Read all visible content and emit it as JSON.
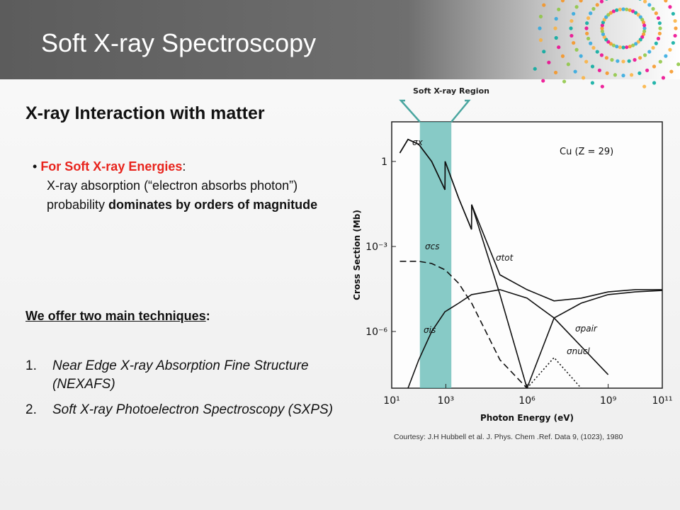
{
  "header": {
    "title": "Soft X-ray Spectroscopy"
  },
  "subtitle": "X-ray Interaction with matter",
  "bullet": {
    "lead": "For Soft X-ray Energies",
    "lead_end": ":",
    "text": "X-ray absorption (“electron absorbs photon”) probability ",
    "emphasis": "dominates by orders of magnitude"
  },
  "techniques": {
    "heading": "We offer two main techniques",
    "heading_end": ":",
    "items": [
      {
        "number": "1.",
        "text": "Near Edge X-ray Absorption Fine Structure (NEXAFS)"
      },
      {
        "number": "2.",
        "text": "Soft X-ray Photoelectron Spectroscopy (SXPS)"
      }
    ]
  },
  "caption": "Courtesy: J.H Hubbell et al.  J. Phys. Chem .Ref. Data 9, (1023), 1980",
  "chart_data": {
    "type": "line",
    "log_x": true,
    "log_y": true,
    "xlabel": "Photon Energy (eV)",
    "ylabel": "Cross Section (Mb)",
    "annotation": "Cu (Z = 29)",
    "highlight": {
      "label": "Soft X-ray Region",
      "range": [
        110,
        1600
      ]
    },
    "xlim": [
      10,
      100000000000
    ],
    "ylim": [
      25,
      1e-08
    ],
    "xticks": [
      {
        "value": 10,
        "label": "10¹"
      },
      {
        "value": 1000,
        "label": "10³"
      },
      {
        "value": 1000000,
        "label": "10⁶"
      },
      {
        "value": 1000000000,
        "label": "10⁹"
      },
      {
        "value": 100000000000,
        "label": "10¹¹"
      }
    ],
    "yticks": [
      1,
      {
        "value": 0.001,
        "label": "10⁻³"
      },
      {
        "value": 1e-06,
        "label": "10⁻⁶"
      }
    ],
    "x": [
      20,
      40,
      100,
      300,
      930,
      940,
      3000,
      8900,
      9000,
      100000,
      1000000,
      10000000,
      100000000,
      1000000000,
      10000000000,
      100000000000
    ],
    "series": [
      {
        "name": "σx",
        "color": "#111111",
        "style": "solid",
        "values": [
          2,
          6,
          4,
          1,
          0.1,
          1,
          0.05,
          0.004,
          0.03,
          2e-05,
          1e-08,
          null,
          null,
          null,
          null,
          null
        ]
      },
      {
        "name": "σtot",
        "color": "#111111",
        "style": "solid",
        "values": [
          2,
          6,
          4,
          1,
          0.1,
          1,
          0.05,
          0.004,
          0.03,
          0.0001,
          3e-05,
          1.2e-05,
          1.5e-05,
          2.5e-05,
          3e-05,
          3e-05
        ]
      },
      {
        "name": "σcs",
        "color": "#111111",
        "style": "dashed",
        "values": [
          0.0003,
          0.0003,
          0.0003,
          0.00025,
          0.00015,
          0.00015,
          5e-05,
          1e-05,
          1e-05,
          1e-07,
          1e-08,
          null,
          null,
          null,
          null,
          null
        ]
      },
      {
        "name": "σis",
        "color": "#111111",
        "style": "solid",
        "values": [
          null,
          1e-08,
          1e-07,
          1e-06,
          5e-06,
          5e-06,
          1e-05,
          2e-05,
          2e-05,
          3e-05,
          1.5e-05,
          3e-06,
          3e-07,
          3e-08,
          null,
          null
        ]
      },
      {
        "name": "σpair",
        "color": "#111111",
        "style": "solid",
        "values": [
          null,
          null,
          null,
          null,
          null,
          null,
          null,
          null,
          null,
          null,
          1e-08,
          3e-06,
          1e-05,
          2e-05,
          2.5e-05,
          2.8e-05
        ]
      },
      {
        "name": "σnucl",
        "color": "#111111",
        "style": "dotted",
        "values": [
          null,
          null,
          null,
          null,
          null,
          null,
          null,
          null,
          null,
          null,
          1e-08,
          1.2e-07,
          1e-08,
          null,
          null,
          null
        ]
      }
    ]
  }
}
